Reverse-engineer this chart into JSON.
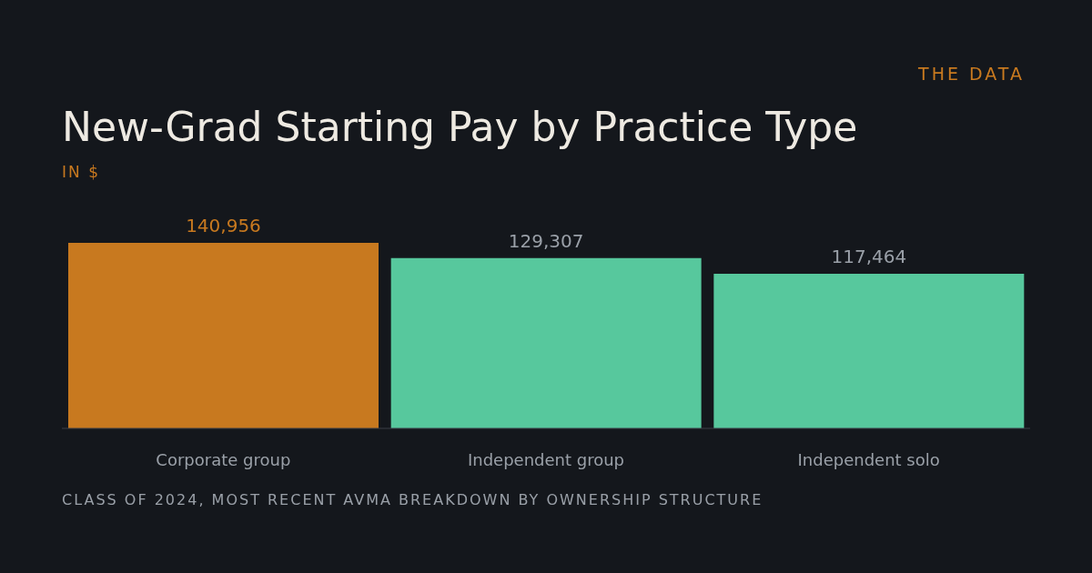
{
  "chart_data": {
    "type": "bar",
    "title": "New-Grad Starting Pay by Practice Type",
    "subtitle": "IN $",
    "categories": [
      "Corporate group",
      "Independent group",
      "Independent solo"
    ],
    "values": [
      140956,
      129307,
      117464
    ],
    "colors": [
      "#c8791f",
      "#57c89d",
      "#57c89d"
    ],
    "value_labels": [
      "140,956",
      "129,307",
      "117,464"
    ],
    "grid": false,
    "legend": false,
    "annotations": [
      "THE DATA",
      "CLASS OF 2024, MOST RECENT AVMA BREAKDOWN BY OWNERSHIP STRUCTURE"
    ]
  }
}
